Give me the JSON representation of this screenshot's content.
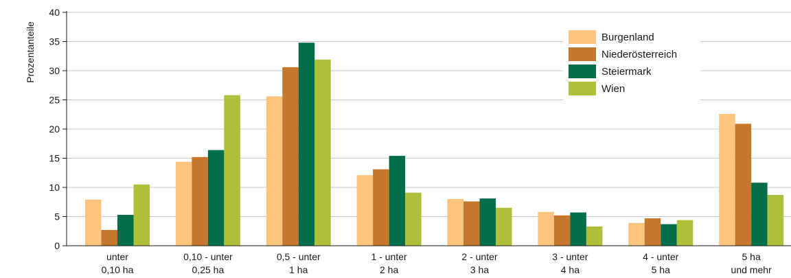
{
  "chart_data": {
    "type": "bar",
    "ylabel": "Prozentanteile",
    "xlabel": "",
    "ylim": [
      0,
      40
    ],
    "yticks": [
      0,
      5,
      10,
      15,
      20,
      25,
      30,
      35,
      40
    ],
    "grid": true,
    "legend_position": "top-right",
    "categories": [
      [
        "unter",
        "0,10 ha"
      ],
      [
        "0,10 - unter",
        "0,25 ha"
      ],
      [
        "0,5 - unter",
        "1 ha"
      ],
      [
        "1 - unter",
        "2 ha"
      ],
      [
        "2 - unter",
        "3 ha"
      ],
      [
        "3 - unter",
        "4 ha"
      ],
      [
        "4 - unter",
        "5 ha"
      ],
      [
        "5 ha",
        "und mehr"
      ]
    ],
    "series": [
      {
        "name": "Burgenland",
        "color": "#FCC47E",
        "values": [
          7.9,
          14.4,
          25.6,
          12.1,
          8.0,
          5.8,
          3.9,
          22.6
        ]
      },
      {
        "name": "Niederösterreich",
        "color": "#C4782E",
        "values": [
          2.7,
          15.2,
          30.6,
          13.1,
          7.6,
          5.2,
          4.7,
          20.9
        ]
      },
      {
        "name": "Steiermark",
        "color": "#036E48",
        "values": [
          5.3,
          16.4,
          34.8,
          15.4,
          8.1,
          5.7,
          3.7,
          10.8
        ]
      },
      {
        "name": "Wien",
        "color": "#AEC03A",
        "values": [
          10.5,
          25.8,
          31.9,
          9.1,
          6.5,
          3.3,
          4.4,
          8.7
        ]
      }
    ]
  }
}
